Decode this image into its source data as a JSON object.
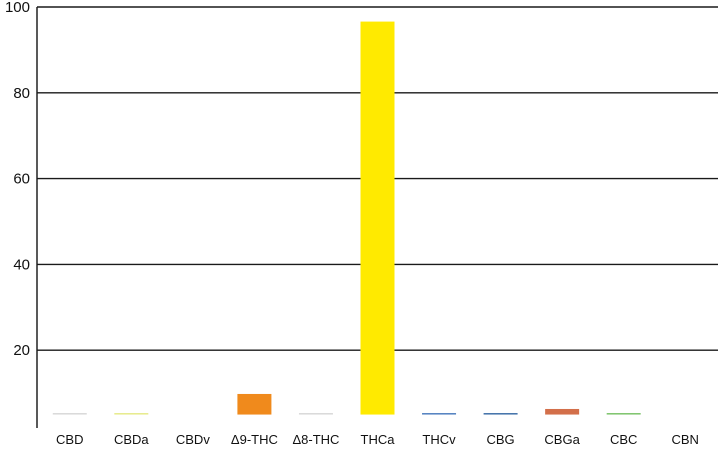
{
  "chart_data": {
    "type": "bar",
    "title": "",
    "xlabel": "",
    "ylabel": "",
    "ylim": [
      0,
      100
    ],
    "y_baseline_visible": 5,
    "yticks": [
      20,
      40,
      60,
      80,
      100
    ],
    "grid": "horizontal",
    "categories": [
      "CBD",
      "CBDa",
      "CBDv",
      "Δ9-THC",
      "Δ8-THC",
      "THCa",
      "THCv",
      "CBG",
      "CBGa",
      "CBC",
      "CBN"
    ],
    "values": [
      0.1,
      0.1,
      0,
      4.8,
      0.1,
      91.6,
      0.2,
      0.2,
      1.3,
      0.1,
      0
    ],
    "colors": [
      "#d9d9d9",
      "#e6ea8a",
      "#cccccc",
      "#f08a1c",
      "#d9d9d9",
      "#ffea00",
      "#4f7fbf",
      "#3f6fa8",
      "#d36f4a",
      "#7cc46a",
      "#cccccc"
    ]
  }
}
